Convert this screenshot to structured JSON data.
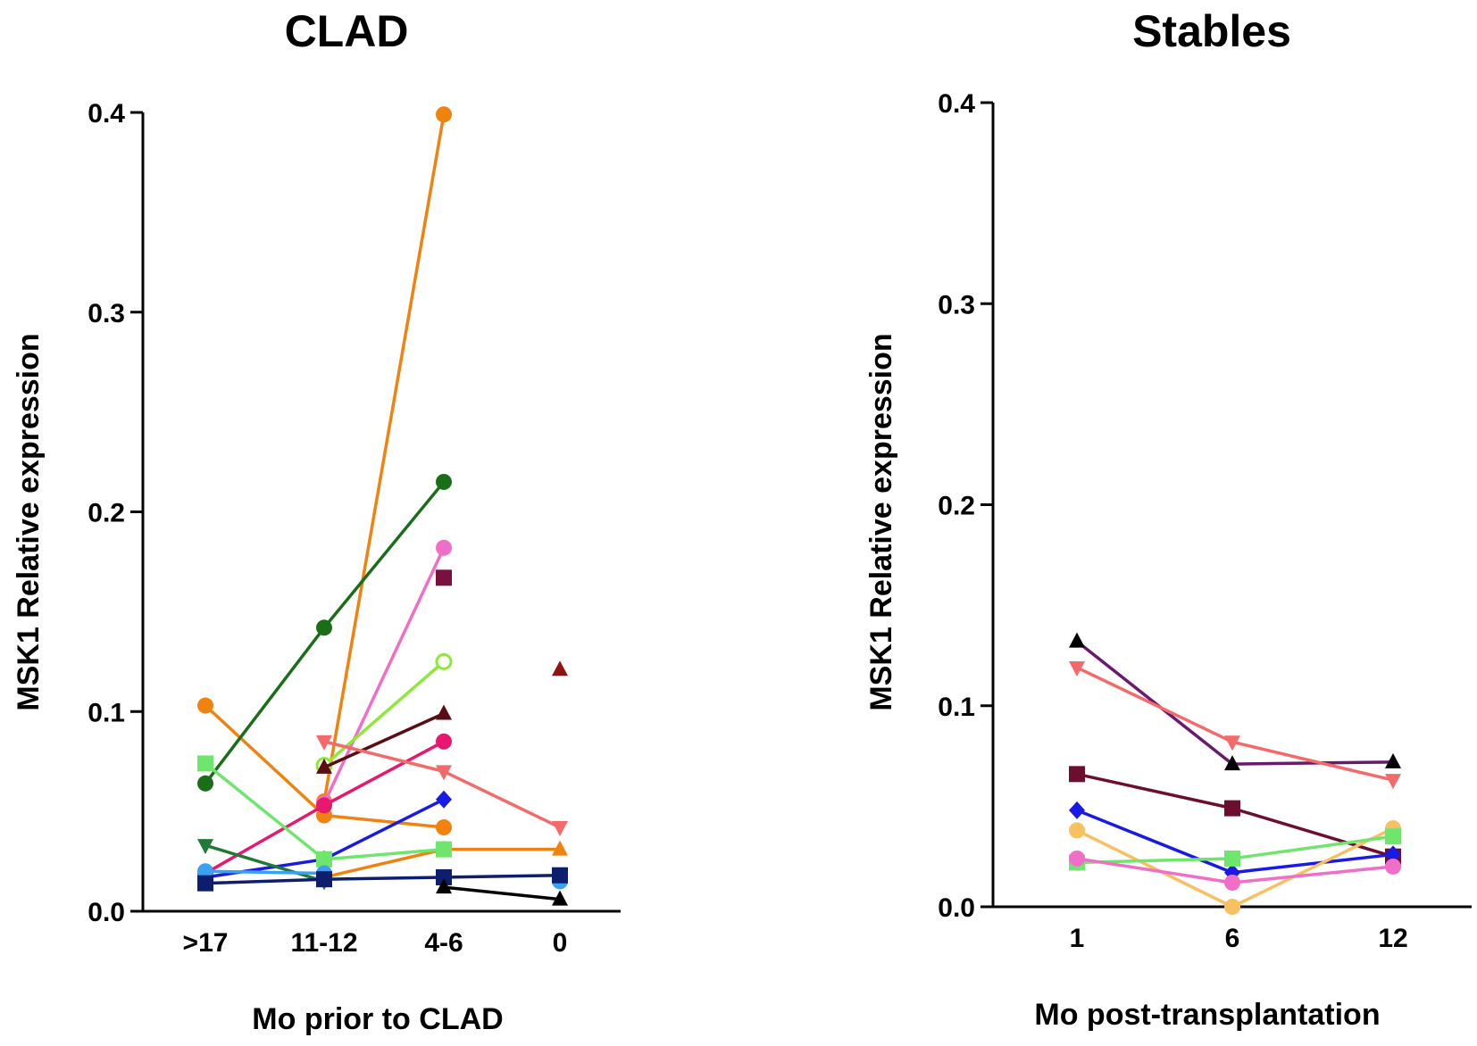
{
  "chart_data": [
    {
      "type": "line",
      "title": "CLAD",
      "xlabel": "Mo prior to CLAD",
      "ylabel": "MSK1 Relative expression",
      "categories": [
        ">17",
        "11-12",
        "4-6",
        "0"
      ],
      "ylim": [
        0,
        0.4
      ],
      "yticks": [
        "0.0",
        "0.1",
        "0.2",
        "0.3",
        "0.4"
      ],
      "yticks_values": [
        0,
        0.1,
        0.2,
        0.3,
        0.4
      ],
      "series": [
        {
          "name": "orange-hexagon",
          "color": "#f0820f",
          "marker": "circle",
          "values": [
            null,
            0.055,
            0.399,
            null
          ]
        },
        {
          "name": "orange-circle",
          "color": "#f0820f",
          "marker": "circle",
          "values": [
            0.103,
            0.048,
            0.042,
            null
          ]
        },
        {
          "name": "orange-triangle",
          "color": "#f0820f",
          "marker": "triangle",
          "values": [
            null,
            0.017,
            0.031,
            0.031
          ]
        },
        {
          "name": "dark-green-circle",
          "color": "#1a6e1a",
          "marker": "circle",
          "values": [
            0.064,
            0.142,
            0.215,
            null
          ]
        },
        {
          "name": "pink-circle",
          "color": "#f06ec8",
          "marker": "circle",
          "values": [
            null,
            0.054,
            0.182,
            null
          ]
        },
        {
          "name": "maroon-square",
          "color": "#7a1040",
          "marker": "square",
          "values": [
            null,
            null,
            0.167,
            null
          ]
        },
        {
          "name": "lime-open-circle",
          "color": "#8ee83a",
          "marker": "open-circle",
          "values": [
            null,
            0.073,
            0.125,
            null
          ]
        },
        {
          "name": "dark-brown-line",
          "color": "#5a0e14",
          "marker": "triangle",
          "values": [
            null,
            0.072,
            0.099,
            null
          ]
        },
        {
          "name": "magenta-circle",
          "color": "#e6196e",
          "marker": "circle",
          "values": [
            0.019,
            0.053,
            0.085,
            null
          ]
        },
        {
          "name": "salmon-triangle-down",
          "color": "#f46a6a",
          "marker": "triangle-down",
          "values": [
            null,
            0.085,
            0.07,
            0.042
          ]
        },
        {
          "name": "blue-diamond",
          "color": "#1a1ae6",
          "marker": "diamond",
          "values": [
            0.017,
            0.026,
            0.056,
            null
          ]
        },
        {
          "name": "light-green-square",
          "color": "#6ee66e",
          "marker": "square",
          "values": [
            0.074,
            0.026,
            0.031,
            null
          ]
        },
        {
          "name": "green-triangle-down",
          "color": "#1f7a3a",
          "marker": "triangle-down",
          "values": [
            0.033,
            0.015,
            null,
            null
          ]
        },
        {
          "name": "light-blue-circle",
          "color": "#3aa0f0",
          "marker": "circle",
          "values": [
            0.02,
            0.019,
            null,
            0.015
          ]
        },
        {
          "name": "navy-square",
          "color": "#0e1e6e",
          "marker": "square",
          "values": [
            0.014,
            0.016,
            0.017,
            0.018
          ]
        },
        {
          "name": "dark-red-triangle",
          "color": "#8e1414",
          "marker": "triangle",
          "values": [
            null,
            null,
            null,
            0.121
          ]
        },
        {
          "name": "black-triangle",
          "color": "#000000",
          "marker": "triangle",
          "values": [
            null,
            null,
            0.012,
            0.006
          ]
        }
      ]
    },
    {
      "type": "line",
      "title": "Stables",
      "xlabel": "Mo post-transplantation",
      "ylabel": "MSK1 Relative expression",
      "categories": [
        "1",
        "6",
        "12"
      ],
      "ylim": [
        0,
        0.4
      ],
      "yticks": [
        "0.0",
        "0.1",
        "0.2",
        "0.3",
        "0.4"
      ],
      "yticks_values": [
        0,
        0.1,
        0.2,
        0.3,
        0.4
      ],
      "series": [
        {
          "name": "purple-triangle",
          "color": "#6a1a6e",
          "marker": "triangle",
          "markerColor": "#000000",
          "values": [
            0.132,
            0.071,
            0.072
          ]
        },
        {
          "name": "salmon-triangle-down",
          "color": "#f46a6a",
          "marker": "triangle-down",
          "values": [
            0.119,
            0.082,
            0.063
          ]
        },
        {
          "name": "maroon-square",
          "color": "#6e0e2e",
          "marker": "square",
          "values": [
            0.066,
            0.049,
            0.025
          ]
        },
        {
          "name": "blue-diamond",
          "color": "#1a1ae6",
          "marker": "diamond",
          "values": [
            0.048,
            0.017,
            0.026
          ]
        },
        {
          "name": "yellow-circle",
          "color": "#f8c060",
          "marker": "circle",
          "values": [
            0.038,
            0.0,
            0.039
          ]
        },
        {
          "name": "light-green-square",
          "color": "#6ee66e",
          "marker": "square",
          "values": [
            0.022,
            0.024,
            0.035
          ]
        },
        {
          "name": "pink-circle",
          "color": "#f06ec8",
          "marker": "circle",
          "values": [
            0.024,
            0.012,
            0.02
          ]
        }
      ]
    }
  ]
}
